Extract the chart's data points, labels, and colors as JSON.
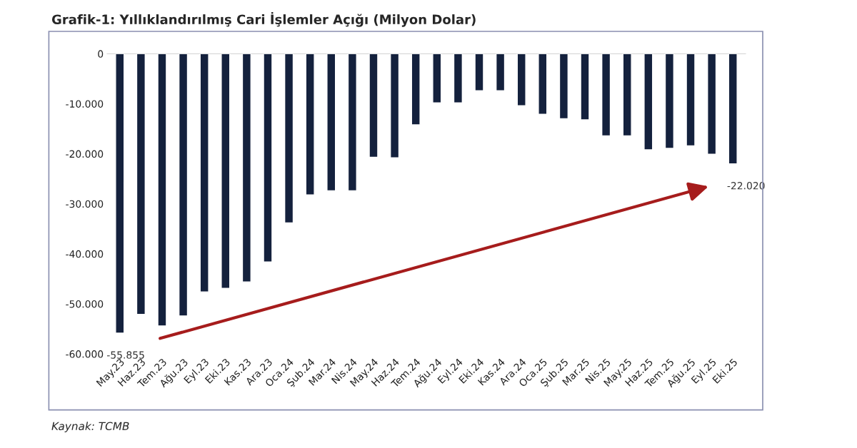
{
  "chart_data": {
    "type": "bar",
    "title": "Grafik-1: Yıllıklandırılmış Cari İşlemler Açığı (Milyon Dolar)",
    "categories": [
      "May.23",
      "Haz.23",
      "Tem.23",
      "Ağu.23",
      "Eyl.23",
      "Eki.23",
      "Kas.23",
      "Ara.23",
      "Oca.24",
      "Şub.24",
      "Mar.24",
      "Nis.24",
      "May.24",
      "Haz.24",
      "Tem.24",
      "Ağu.24",
      "Eyl.24",
      "Eki.24",
      "Kas.24",
      "Ara.24",
      "Oca.25",
      "Şub.25",
      "Mar.25",
      "Nis.25",
      "May.25",
      "Haz.25",
      "Tem.25",
      "Ağu.25",
      "Eyl.25",
      "Eki.25"
    ],
    "values": [
      -55855,
      -52100,
      -54400,
      -52400,
      -47600,
      -46900,
      -45600,
      -41600,
      -33800,
      -28200,
      -27400,
      -27400,
      -20700,
      -20800,
      -14200,
      -9800,
      -9800,
      -7400,
      -7400,
      -10400,
      -12100,
      -13000,
      -13200,
      -16400,
      -16400,
      -19200,
      -18900,
      -18400,
      -20100,
      -22020
    ],
    "value_labels": [
      "-55.855",
      null,
      null,
      null,
      null,
      null,
      null,
      null,
      null,
      null,
      null,
      null,
      null,
      null,
      null,
      null,
      null,
      null,
      null,
      null,
      null,
      null,
      null,
      null,
      null,
      null,
      null,
      null,
      null,
      "-22.020"
    ],
    "color": "#14213d",
    "ylim": [
      -60000,
      0
    ],
    "yticks": [
      {
        "value": 0,
        "label": "0"
      },
      {
        "value": -10000,
        "label": "-10.000"
      },
      {
        "value": -20000,
        "label": "-20.000"
      },
      {
        "value": -30000,
        "label": "-30.000"
      },
      {
        "value": -40000,
        "label": "-40.000"
      },
      {
        "value": -50000,
        "label": "-50.000"
      },
      {
        "value": -60000,
        "label": "-60.000"
      }
    ],
    "grid": false,
    "legend": false,
    "annotations": [
      "Kaynak: TCMB"
    ]
  }
}
